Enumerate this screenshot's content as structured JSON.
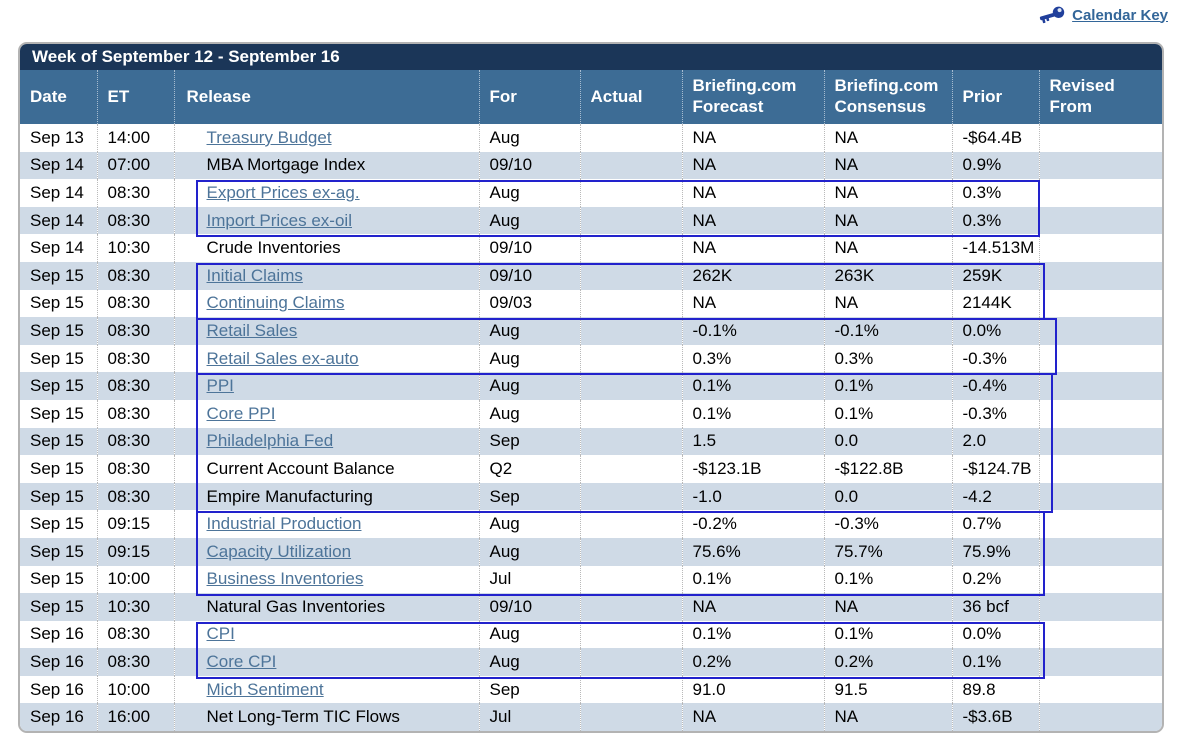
{
  "page": {
    "calendar_key_label": "Calendar Key"
  },
  "colors": {
    "title_bar": "#1b3658",
    "header_bar": "#3d6c95",
    "stripe_row": "#cfdae6",
    "release_link": "#4d7499",
    "highlight_box_border": "#2222cc",
    "calendar_key_link": "#336699",
    "key_icon": "#203f9b"
  },
  "table": {
    "title": "Week of September 12 - September 16",
    "columns": [
      "Date",
      "ET",
      "Release",
      "For",
      "Actual",
      "Briefing.com Forecast",
      "Briefing.com Consensus",
      "Prior",
      "Revised From"
    ],
    "rows": [
      {
        "date": "Sep 13",
        "et": "14:00",
        "release": "Treasury Budget",
        "link": true,
        "for": "Aug",
        "actual": "",
        "forecast": "NA",
        "consensus": "NA",
        "prior": "-$64.4B",
        "revised": ""
      },
      {
        "date": "Sep 14",
        "et": "07:00",
        "release": "MBA Mortgage Index",
        "link": false,
        "for": "09/10",
        "actual": "",
        "forecast": "NA",
        "consensus": "NA",
        "prior": "0.9%",
        "revised": ""
      },
      {
        "date": "Sep 14",
        "et": "08:30",
        "release": "Export Prices ex-ag.",
        "link": true,
        "for": "Aug",
        "actual": "",
        "forecast": "NA",
        "consensus": "NA",
        "prior": "0.3%",
        "revised": ""
      },
      {
        "date": "Sep 14",
        "et": "08:30",
        "release": "Import Prices ex-oil",
        "link": true,
        "for": "Aug",
        "actual": "",
        "forecast": "NA",
        "consensus": "NA",
        "prior": "0.3%",
        "revised": ""
      },
      {
        "date": "Sep 14",
        "et": "10:30",
        "release": "Crude Inventories",
        "link": false,
        "for": "09/10",
        "actual": "",
        "forecast": "NA",
        "consensus": "NA",
        "prior": "-14.513M",
        "revised": ""
      },
      {
        "date": "Sep 15",
        "et": "08:30",
        "release": "Initial Claims",
        "link": true,
        "for": "09/10",
        "actual": "",
        "forecast": "262K",
        "consensus": "263K",
        "prior": "259K",
        "revised": ""
      },
      {
        "date": "Sep 15",
        "et": "08:30",
        "release": "Continuing Claims",
        "link": true,
        "for": "09/03",
        "actual": "",
        "forecast": "NA",
        "consensus": "NA",
        "prior": "2144K",
        "revised": ""
      },
      {
        "date": "Sep 15",
        "et": "08:30",
        "release": "Retail Sales",
        "link": true,
        "for": "Aug",
        "actual": "",
        "forecast": "-0.1%",
        "consensus": "-0.1%",
        "prior": "0.0%",
        "revised": ""
      },
      {
        "date": "Sep 15",
        "et": "08:30",
        "release": "Retail Sales ex-auto",
        "link": true,
        "for": "Aug",
        "actual": "",
        "forecast": "0.3%",
        "consensus": "0.3%",
        "prior": "-0.3%",
        "revised": ""
      },
      {
        "date": "Sep 15",
        "et": "08:30",
        "release": "PPI",
        "link": true,
        "for": "Aug",
        "actual": "",
        "forecast": "0.1%",
        "consensus": "0.1%",
        "prior": "-0.4%",
        "revised": ""
      },
      {
        "date": "Sep 15",
        "et": "08:30",
        "release": "Core PPI",
        "link": true,
        "for": "Aug",
        "actual": "",
        "forecast": "0.1%",
        "consensus": "0.1%",
        "prior": "-0.3%",
        "revised": ""
      },
      {
        "date": "Sep 15",
        "et": "08:30",
        "release": "Philadelphia Fed",
        "link": true,
        "for": "Sep",
        "actual": "",
        "forecast": "1.5",
        "consensus": "0.0",
        "prior": "2.0",
        "revised": ""
      },
      {
        "date": "Sep 15",
        "et": "08:30",
        "release": "Current Account Balance",
        "link": false,
        "for": "Q2",
        "actual": "",
        "forecast": "-$123.1B",
        "consensus": "-$122.8B",
        "prior": "-$124.7B",
        "revised": ""
      },
      {
        "date": "Sep 15",
        "et": "08:30",
        "release": "Empire Manufacturing",
        "link": false,
        "for": "Sep",
        "actual": "",
        "forecast": "-1.0",
        "consensus": "0.0",
        "prior": "-4.2",
        "revised": ""
      },
      {
        "date": "Sep 15",
        "et": "09:15",
        "release": "Industrial Production",
        "link": true,
        "for": "Aug",
        "actual": "",
        "forecast": "-0.2%",
        "consensus": "-0.3%",
        "prior": "0.7%",
        "revised": ""
      },
      {
        "date": "Sep 15",
        "et": "09:15",
        "release": "Capacity Utilization",
        "link": true,
        "for": "Aug",
        "actual": "",
        "forecast": "75.6%",
        "consensus": "75.7%",
        "prior": "75.9%",
        "revised": ""
      },
      {
        "date": "Sep 15",
        "et": "10:00",
        "release": "Business Inventories",
        "link": true,
        "for": "Jul",
        "actual": "",
        "forecast": "0.1%",
        "consensus": "0.1%",
        "prior": "0.2%",
        "revised": ""
      },
      {
        "date": "Sep 15",
        "et": "10:30",
        "release": "Natural Gas Inventories",
        "link": false,
        "for": "09/10",
        "actual": "",
        "forecast": "NA",
        "consensus": "NA",
        "prior": "36 bcf",
        "revised": ""
      },
      {
        "date": "Sep 16",
        "et": "08:30",
        "release": "CPI",
        "link": true,
        "for": "Aug",
        "actual": "",
        "forecast": "0.1%",
        "consensus": "0.1%",
        "prior": "0.0%",
        "revised": ""
      },
      {
        "date": "Sep 16",
        "et": "08:30",
        "release": "Core CPI",
        "link": true,
        "for": "Aug",
        "actual": "",
        "forecast": "0.2%",
        "consensus": "0.2%",
        "prior": "0.1%",
        "revised": ""
      },
      {
        "date": "Sep 16",
        "et": "10:00",
        "release": "Mich Sentiment",
        "link": true,
        "for": "Sep",
        "actual": "",
        "forecast": "91.0",
        "consensus": "91.5",
        "prior": "89.8",
        "revised": ""
      },
      {
        "date": "Sep 16",
        "et": "16:00",
        "release": "Net Long-Term TIC Flows",
        "link": false,
        "for": "Jul",
        "actual": "",
        "forecast": "NA",
        "consensus": "NA",
        "prior": "-$3.6B",
        "revised": ""
      }
    ],
    "highlight_groups": [
      {
        "start": 2,
        "end": 3
      },
      {
        "start": 5,
        "end": 6
      },
      {
        "start": 7,
        "end": 8
      },
      {
        "start": 9,
        "end": 13
      },
      {
        "start": 14,
        "end": 16
      },
      {
        "start": 18,
        "end": 19
      }
    ]
  }
}
